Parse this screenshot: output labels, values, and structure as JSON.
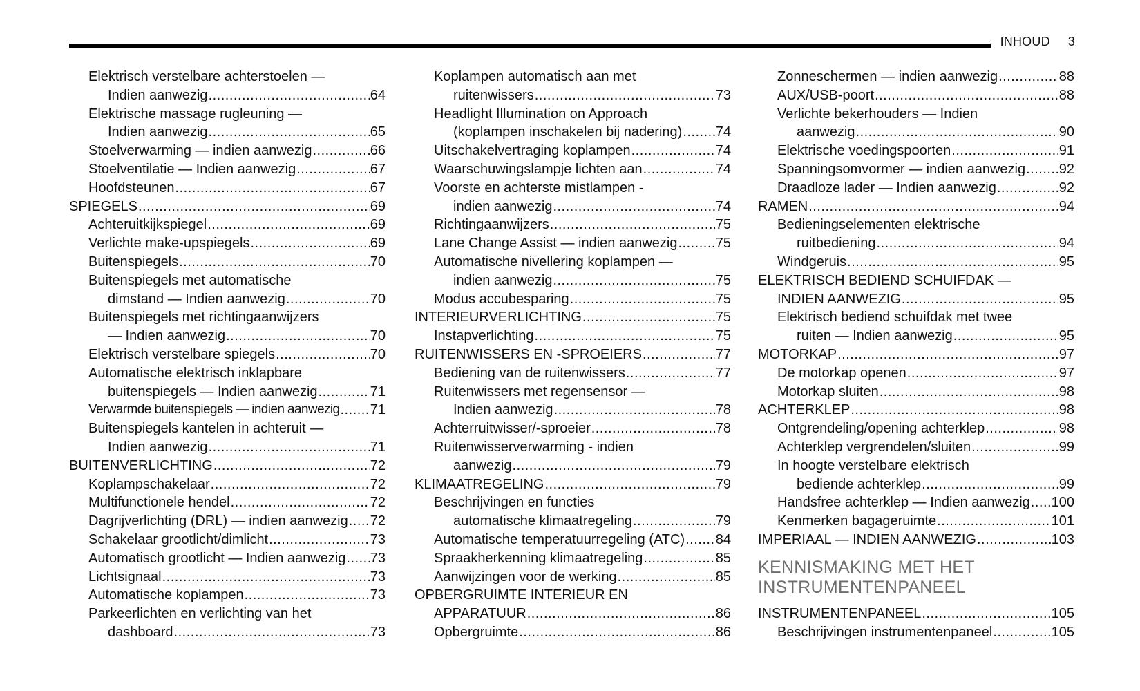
{
  "header": {
    "section": "INHOUD",
    "page_number": "3"
  },
  "columns": [
    {
      "items": [
        {
          "text": "Elektrisch verstelbare achterstoelen —",
          "indent": 1
        },
        {
          "text": "Indien aanwezig",
          "page": "64",
          "indent": 2
        },
        {
          "text": "Elektrische massage rugleuning —",
          "indent": 1
        },
        {
          "text": "Indien aanwezig",
          "page": "65",
          "indent": 2
        },
        {
          "text": "Stoelverwarming — indien aanwezig",
          "page": "66",
          "indent": 1
        },
        {
          "text": "Stoelventilatie — Indien aanwezig",
          "page": "67",
          "indent": 1
        },
        {
          "text": "Hoofdsteunen ",
          "page": "67",
          "indent": 1
        },
        {
          "text": "SPIEGELS ",
          "page": "69",
          "indent": 0
        },
        {
          "text": "Achteruitkijkspiegel",
          "page": "69",
          "indent": 1
        },
        {
          "text": "Verlichte make-upspiegels",
          "page": "69",
          "indent": 1
        },
        {
          "text": "Buitenspiegels",
          "page": "70",
          "indent": 1
        },
        {
          "text": "Buitenspiegels met automatische",
          "indent": 1
        },
        {
          "text": "dimstand — Indien aanwezig",
          "page": "70",
          "indent": 2
        },
        {
          "text": "Buitenspiegels met richtingaanwijzers",
          "indent": 1
        },
        {
          "text": "— Indien aanwezig",
          "page": "70",
          "indent": 2
        },
        {
          "text": "Elektrisch verstelbare spiegels",
          "page": "70",
          "indent": 1
        },
        {
          "text": "Automatische elektrisch inklapbare",
          "indent": 1
        },
        {
          "text": "buitenspiegels — Indien aanwezig",
          "page": "71",
          "indent": 2
        },
        {
          "text": "Verwarmde buitenspiegels — indien aanwezig",
          "page": "71",
          "indent": 1,
          "narrow": true
        },
        {
          "text": "Buitenspiegels kantelen in achteruit —",
          "indent": 1
        },
        {
          "text": "Indien aanwezig",
          "page": "71",
          "indent": 2
        },
        {
          "text": "BUITENVERLICHTING ",
          "page": "72",
          "indent": 0
        },
        {
          "text": "Koplampschakelaar",
          "page": "72",
          "indent": 1
        },
        {
          "text": "Multifunctionele hendel",
          "page": "72",
          "indent": 1
        },
        {
          "text": "Dagrijverlichting (DRL) — indien aanwezig",
          "page": "72",
          "indent": 1
        },
        {
          "text": "Schakelaar grootlicht/dimlicht",
          "page": "73",
          "indent": 1
        },
        {
          "text": "Automatisch grootlicht — Indien aanwezig",
          "page": "73",
          "indent": 1
        },
        {
          "text": "Lichtsignaal ",
          "page": "73",
          "indent": 1
        },
        {
          "text": "Automatische koplampen",
          "page": "73",
          "indent": 1
        },
        {
          "text": "Parkeerlichten en verlichting van het",
          "indent": 1
        },
        {
          "text": "dashboard",
          "page": "73",
          "indent": 2
        }
      ]
    },
    {
      "items": [
        {
          "text": "Koplampen automatisch aan met",
          "indent": 1
        },
        {
          "text": "ruitenwissers",
          "page": "73",
          "indent": 2
        },
        {
          "text": "Headlight Illumination on Approach",
          "indent": 1
        },
        {
          "text": "(koplampen inschakelen bij nadering)",
          "page": "74",
          "indent": 2
        },
        {
          "text": "Uitschakelvertraging koplampen",
          "page": "74",
          "indent": 1
        },
        {
          "text": "Waarschuwingslampje lichten aan",
          "page": "74",
          "indent": 1
        },
        {
          "text": "Voorste en achterste mistlampen -",
          "indent": 1
        },
        {
          "text": "indien aanwezig ",
          "page": "74",
          "indent": 2
        },
        {
          "text": "Richtingaanwijzers",
          "page": "75",
          "indent": 1
        },
        {
          "text": "Lane Change Assist — indien aanwezig",
          "page": "75",
          "indent": 1
        },
        {
          "text": "Automatische nivellering koplampen —",
          "indent": 1
        },
        {
          "text": "indien aanwezig",
          "page": "75",
          "indent": 2
        },
        {
          "text": "Modus accubesparing",
          "page": "75",
          "indent": 1
        },
        {
          "text": "INTERIEURVERLICHTING",
          "page": "75",
          "indent": 0
        },
        {
          "text": "Instapverlichting",
          "page": "75",
          "indent": 1
        },
        {
          "text": "RUITENWISSERS EN -SPROEIERS",
          "page": "77",
          "indent": 0
        },
        {
          "text": "Bediening van de ruitenwissers",
          "page": "77",
          "indent": 1
        },
        {
          "text": "Ruitenwissers met regensensor —",
          "indent": 1
        },
        {
          "text": "Indien aanwezig",
          "page": "78",
          "indent": 2
        },
        {
          "text": "Achterruitwisser/-sproeier",
          "page": "78",
          "indent": 1
        },
        {
          "text": "Ruitenwisserverwarming - indien",
          "indent": 1
        },
        {
          "text": "aanwezig",
          "page": "79",
          "indent": 2
        },
        {
          "text": "KLIMAATREGELING",
          "page": "79",
          "indent": 0
        },
        {
          "text": "Beschrijvingen en functies",
          "indent": 1
        },
        {
          "text": "automatische klimaatregeling",
          "page": "79",
          "indent": 2
        },
        {
          "text": "Automatische temperatuurregeling (ATC)",
          "page": "84",
          "indent": 1
        },
        {
          "text": "Spraakherkenning klimaatregeling",
          "page": "85",
          "indent": 1
        },
        {
          "text": "Aanwijzingen voor de werking ",
          "page": "85",
          "indent": 1
        },
        {
          "text": "OPBERGRUIMTE INTERIEUR EN",
          "indent": 0
        },
        {
          "text": "APPARATUUR",
          "page": "86",
          "indent": 1
        },
        {
          "text": "Opbergruimte",
          "page": "86",
          "indent": 1
        }
      ]
    },
    {
      "items": [
        {
          "text": "Zonneschermen — indien aanwezig",
          "page": "88",
          "indent": 1
        },
        {
          "text": "AUX/USB-poort ",
          "page": "88",
          "indent": 1
        },
        {
          "text": "Verlichte bekerhouders — Indien",
          "indent": 1
        },
        {
          "text": "aanwezig",
          "page": "90",
          "indent": 2
        },
        {
          "text": "Elektrische voedingspoorten",
          "page": "91",
          "indent": 1
        },
        {
          "text": "Spanningsomvormer — indien aanwezig",
          "page": "92",
          "indent": 1
        },
        {
          "text": "Draadloze lader — Indien aanwezig",
          "page": "92",
          "indent": 1
        },
        {
          "text": "RAMEN ",
          "page": "94",
          "indent": 0
        },
        {
          "text": "Bedieningselementen elektrische",
          "indent": 1
        },
        {
          "text": "ruitbediening",
          "page": "94",
          "indent": 2
        },
        {
          "text": "Windgeruis ",
          "page": "95",
          "indent": 1
        },
        {
          "text": "ELEKTRISCH BEDIEND SCHUIFDAK —",
          "indent": 0
        },
        {
          "text": "INDIEN AANWEZIG ",
          "page": "95",
          "indent": 1
        },
        {
          "text": "Elektrisch bediend schuifdak met twee",
          "indent": 1
        },
        {
          "text": "ruiten — Indien aanwezig",
          "page": "95",
          "indent": 2
        },
        {
          "text": "MOTORKAP ",
          "page": "97",
          "indent": 0
        },
        {
          "text": "De motorkap openen",
          "page": "97",
          "indent": 1
        },
        {
          "text": "Motorkap sluiten",
          "page": "98",
          "indent": 1
        },
        {
          "text": "ACHTERKLEP",
          "page": "98",
          "indent": 0
        },
        {
          "text": "Ontgrendeling/opening achterklep",
          "page": "98",
          "indent": 1
        },
        {
          "text": "Achterklep vergrendelen/sluiten",
          "page": "99",
          "indent": 1
        },
        {
          "text": "In hoogte verstelbare elektrisch",
          "indent": 1
        },
        {
          "text": "bediende achterklep",
          "page": "99",
          "indent": 2
        },
        {
          "text": "Handsfree achterklep — Indien aanwezig ",
          "page": "100",
          "indent": 1
        },
        {
          "text": "Kenmerken bagageruimte",
          "page": "101",
          "indent": 1
        },
        {
          "text": "IMPERIAAL — INDIEN AANWEZIG",
          "page": "103",
          "indent": 0
        },
        {
          "section": "KENNISMAKING MET HET",
          "section2": "INSTRUMENTENPANEEL"
        },
        {
          "text": "INSTRUMENTENPANEEL",
          "page": "105",
          "indent": 0
        },
        {
          "text": "Beschrijvingen instrumentenpaneel",
          "page": "105",
          "indent": 1
        }
      ]
    }
  ]
}
